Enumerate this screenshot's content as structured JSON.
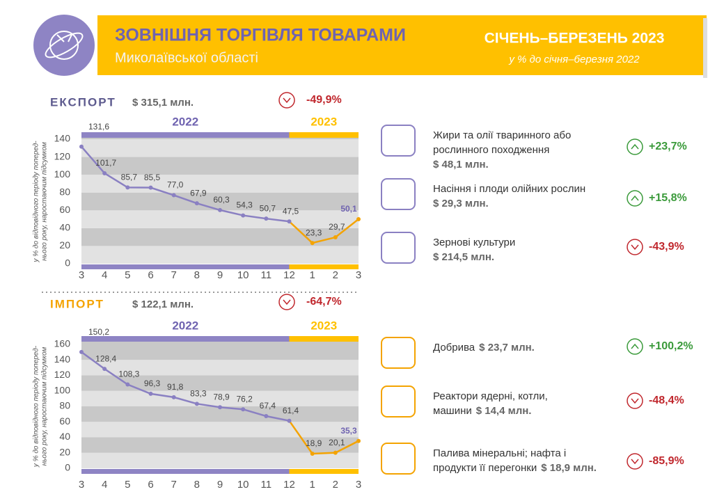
{
  "header": {
    "title": "ЗОВНІШНЯ ТОРГІВЛЯ ТОВАРАМИ",
    "subtitle": "Миколаївської області",
    "period": "СІЧЕНЬ–БЕРЕЗЕНЬ 2023",
    "period_note": "у % до січня–березня 2022"
  },
  "export": {
    "label": "ЕКСПОРТ",
    "total": "$ 315,1 млн.",
    "change": "-49,9%",
    "items": [
      {
        "name": [
          "Жири та олії тваринного або",
          "рослинного походження"
        ],
        "amount": "$ 48,1 млн.",
        "change": "+23,7%"
      },
      {
        "name": [
          "Насіння і плоди олійних рослин"
        ],
        "amount": "$ 29,3 млн.",
        "change": "+15,8%"
      },
      {
        "name": [
          "Зернові культури"
        ],
        "amount": "$ 214,5 млн.",
        "change": "-43,9%"
      }
    ]
  },
  "import": {
    "label": "ІМПОРТ",
    "total": "$ 122,1 млн.",
    "change": "-64,7%",
    "items": [
      {
        "name": [
          "Добрива"
        ],
        "amount": "$ 23,7 млн.",
        "change": "+100,2%"
      },
      {
        "name": [
          "Реактори ядерні, котли,",
          "машини"
        ],
        "amount": "$ 14,4 млн.",
        "change": "-48,4%"
      },
      {
        "name": [
          "Палива мінеральні; нафта і",
          "продукти її перегонки"
        ],
        "amount": "$ 18,9 млн.",
        "change": "-85,9%"
      }
    ]
  },
  "chart_data": [
    {
      "type": "line",
      "ylabel": [
        "у % до відповідного періоду поперед-",
        "нього року, наростаючим підсумком"
      ],
      "categories": [
        "3",
        "4",
        "5",
        "6",
        "7",
        "8",
        "9",
        "10",
        "11",
        "12",
        "1",
        "2",
        "3"
      ],
      "series": [
        {
          "name": "2022",
          "color": "#8a80c2",
          "band_color": "#8e84c4",
          "values": [
            131.6,
            101.7,
            85.7,
            85.5,
            77.0,
            67.9,
            60.3,
            54.3,
            50.7,
            47.5,
            null,
            null,
            null
          ],
          "value_labels": [
            "131,6",
            "101,7",
            "85,7",
            "85,5",
            "77,0",
            "67,9",
            "60,3",
            "54,3",
            "50,7",
            "47,5",
            null,
            null,
            null
          ]
        },
        {
          "name": "2023",
          "color": "#f4a300",
          "band_color": "#ffc000",
          "values": [
            null,
            null,
            null,
            null,
            null,
            null,
            null,
            null,
            null,
            null,
            23.3,
            29.7,
            50.1
          ],
          "value_labels": [
            null,
            null,
            null,
            null,
            null,
            null,
            null,
            null,
            null,
            null,
            "23,3",
            "29,7",
            "50,1"
          ]
        }
      ],
      "ylim": [
        0,
        140
      ],
      "yticks": [
        0,
        20,
        40,
        60,
        80,
        100,
        120,
        140
      ]
    },
    {
      "type": "line",
      "ylabel": [
        "у % до відповідного періоду поперед-",
        "нього року, наростаючим підсумком"
      ],
      "categories": [
        "3",
        "4",
        "5",
        "6",
        "7",
        "8",
        "9",
        "10",
        "11",
        "12",
        "1",
        "2",
        "3"
      ],
      "series": [
        {
          "name": "2022",
          "color": "#8a80c2",
          "band_color": "#8e84c4",
          "values": [
            150.2,
            128.4,
            108.3,
            96.3,
            91.8,
            83.3,
            78.9,
            76.2,
            67.4,
            61.4,
            null,
            null,
            null
          ],
          "value_labels": [
            "150,2",
            "128,4",
            "108,3",
            "96,3",
            "91,8",
            "83,3",
            "78,9",
            "76,2",
            "67,4",
            "61,4",
            null,
            null,
            null
          ]
        },
        {
          "name": "2023",
          "color": "#f4a300",
          "band_color": "#ffc000",
          "values": [
            null,
            null,
            null,
            null,
            null,
            null,
            null,
            null,
            null,
            null,
            18.9,
            20.1,
            35.3
          ],
          "value_labels": [
            null,
            null,
            null,
            null,
            null,
            null,
            null,
            null,
            null,
            null,
            "18,9",
            "20,1",
            "35,3"
          ]
        }
      ],
      "ylim": [
        0,
        160
      ],
      "yticks": [
        0,
        20,
        40,
        60,
        80,
        100,
        120,
        140,
        160
      ]
    }
  ]
}
